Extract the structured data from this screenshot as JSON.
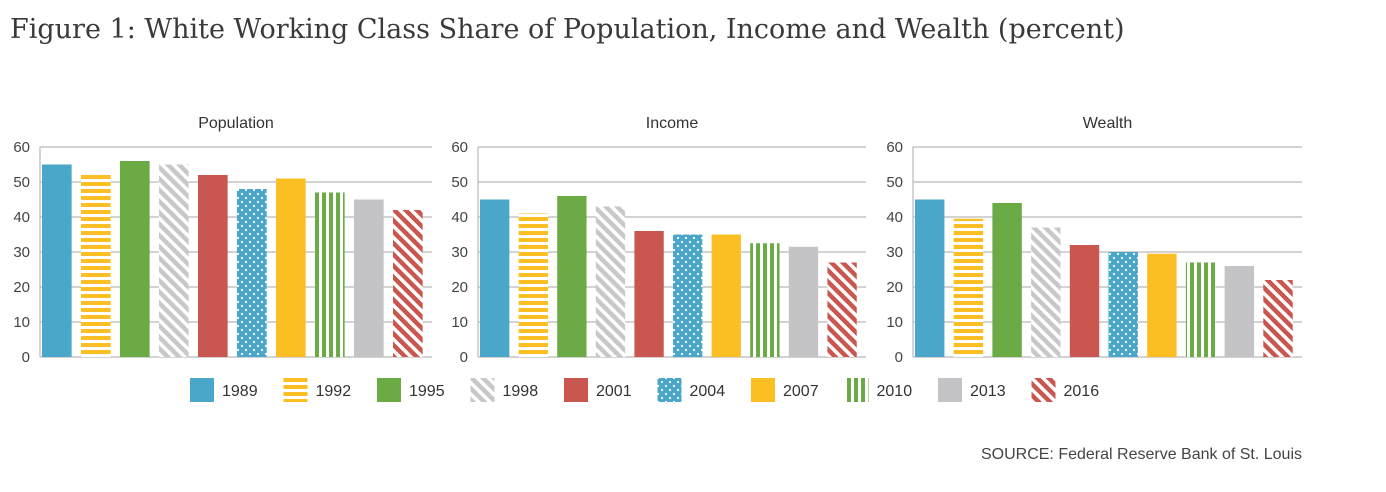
{
  "title": "Figure 1: White Working Class Share of Population, Income and Wealth (percent)",
  "source": "SOURCE: Federal Reserve Bank of St. Louis",
  "colors": {
    "1989": "#4aa7c9",
    "1992": "#fbbf23",
    "1995": "#6aab45",
    "1998": "#c8c8c8",
    "2001": "#c9574f",
    "2004": "#4aa7c9",
    "2007": "#fbbf23",
    "2010": "#6aab45",
    "2013": "#c4c4c6",
    "2016": "#c9574f"
  },
  "patterns": {
    "1989": "solid",
    "1992": "horizontal-stripes",
    "1995": "solid",
    "1998": "diagonal-stripes",
    "2001": "solid",
    "2004": "dots",
    "2007": "solid",
    "2010": "vertical-stripes",
    "2013": "solid",
    "2016": "diagonal-stripes"
  },
  "chart_data": [
    {
      "type": "bar",
      "title": "Population",
      "categories": [
        "1989",
        "1992",
        "1995",
        "1998",
        "2001",
        "2004",
        "2007",
        "2010",
        "2013",
        "2016"
      ],
      "values": [
        55,
        52,
        56,
        55,
        52,
        48,
        51,
        47,
        45,
        42
      ],
      "ylim": [
        0,
        60
      ],
      "yticks": [
        0,
        10,
        20,
        30,
        40,
        50,
        60
      ],
      "grid": true
    },
    {
      "type": "bar",
      "title": "Income",
      "categories": [
        "1989",
        "1992",
        "1995",
        "1998",
        "2001",
        "2004",
        "2007",
        "2010",
        "2013",
        "2016"
      ],
      "values": [
        45,
        41,
        46,
        43,
        36,
        35,
        35,
        32.5,
        31.5,
        27
      ],
      "ylim": [
        0,
        60
      ],
      "yticks": [
        0,
        10,
        20,
        30,
        40,
        50,
        60
      ],
      "grid": true
    },
    {
      "type": "bar",
      "title": "Wealth",
      "categories": [
        "1989",
        "1992",
        "1995",
        "1998",
        "2001",
        "2004",
        "2007",
        "2010",
        "2013",
        "2016"
      ],
      "values": [
        45,
        39.5,
        44,
        37,
        32,
        30,
        29.5,
        27,
        26,
        22
      ],
      "ylim": [
        0,
        60
      ],
      "yticks": [
        0,
        10,
        20,
        30,
        40,
        50,
        60
      ],
      "grid": true
    }
  ],
  "legend": {
    "placement": "bottom-center",
    "items": [
      "1989",
      "1992",
      "1995",
      "1998",
      "2001",
      "2004",
      "2007",
      "2010",
      "2013",
      "2016"
    ]
  }
}
